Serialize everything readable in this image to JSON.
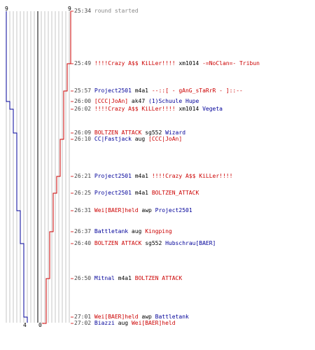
{
  "colors": {
    "team_ct": "#000099",
    "team_t": "#cc0000",
    "grid": "#a0a0a0",
    "center_line": "#555555"
  },
  "scores": {
    "ct_start": "9",
    "t_start": "9",
    "ct_end": "4",
    "t_end": "0"
  },
  "events": [
    {
      "time": "25:34",
      "kind": "system",
      "text": "round started"
    },
    {
      "time": "25:49",
      "kind": "kill",
      "killer": "!!!!Crazy A$$ KiLLer!!!!",
      "killer_team": "red",
      "weapon": "xm1014",
      "victim": "-=NoClan=- Tribun",
      "victim_team": "red"
    },
    {
      "time": "25:57",
      "kind": "kill",
      "killer": "Project2501",
      "killer_team": "blue",
      "weapon": "m4a1",
      "victim": "--::[ - gAnG_sTaRrR - ]::--",
      "victim_team": "red"
    },
    {
      "time": "26:00",
      "kind": "kill",
      "killer": "[CCC|JoAn]",
      "killer_team": "red",
      "weapon": "ak47",
      "victim": "(1)Schuule Hupe",
      "victim_team": "blue"
    },
    {
      "time": "26:02",
      "kind": "kill",
      "killer": "!!!!Crazy A$$ KiLLer!!!!",
      "killer_team": "red",
      "weapon": "xm1014",
      "victim": "Vegeta",
      "victim_team": "blue"
    },
    {
      "time": "26:09",
      "kind": "kill",
      "killer": "BOLTZEN ATTACK",
      "killer_team": "red",
      "weapon": "sg552",
      "victim": "Wizard",
      "victim_team": "blue"
    },
    {
      "time": "26:10",
      "kind": "kill",
      "killer": "CC|Fastjack",
      "killer_team": "blue",
      "weapon": "aug",
      "victim": "[CCC|JoAn]",
      "victim_team": "red"
    },
    {
      "time": "26:21",
      "kind": "kill",
      "killer": "Project2501",
      "killer_team": "blue",
      "weapon": "m4a1",
      "victim": "!!!!Crazy A$$ KiLLer!!!!",
      "victim_team": "red"
    },
    {
      "time": "26:25",
      "kind": "kill",
      "killer": "Project2501",
      "killer_team": "blue",
      "weapon": "m4a1",
      "victim": "BOLTZEN_ATTACK",
      "victim_team": "red"
    },
    {
      "time": "26:31",
      "kind": "kill",
      "killer": "Wei[BAER]held",
      "killer_team": "red",
      "weapon": "awp",
      "victim": "Project2501",
      "victim_team": "blue"
    },
    {
      "time": "26:37",
      "kind": "kill",
      "killer": "Battletank",
      "killer_team": "blue",
      "weapon": "aug",
      "victim": "Kingping",
      "victim_team": "red"
    },
    {
      "time": "26:40",
      "kind": "kill",
      "killer": "BOLTZEN ATTACK",
      "killer_team": "red",
      "weapon": "sg552",
      "victim": "Hubschrau[BAER]",
      "victim_team": "blue"
    },
    {
      "time": "26:50",
      "kind": "kill",
      "killer": "Mitnal",
      "killer_team": "blue",
      "weapon": "m4a1",
      "victim": "BOLTZEN ATTACK",
      "victim_team": "red"
    },
    {
      "time": "27:01",
      "kind": "kill",
      "killer": "Wei[BAER]held",
      "killer_team": "red",
      "weapon": "awp",
      "victim": "Battletank",
      "victim_team": "blue"
    },
    {
      "time": "27:02",
      "kind": "kill",
      "killer": "Biazzi",
      "killer_team": "blue",
      "weapon": "aug",
      "victim": "Wei[BAER]held",
      "victim_team": "red"
    }
  ]
}
